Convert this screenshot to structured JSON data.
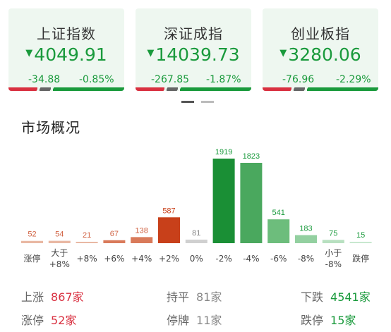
{
  "indices": [
    {
      "name": "上证指数",
      "price": "4049.91",
      "change": "-34.88",
      "pct": "-0.85%"
    },
    {
      "name": "深证成指",
      "price": "14039.73",
      "change": "-267.85",
      "pct": "-1.87%"
    },
    {
      "name": "创业板指",
      "price": "3280.06",
      "change": "-76.96",
      "pct": "-2.29%"
    }
  ],
  "down_marker": "▼",
  "section_title": "市场概况",
  "chart_data": {
    "type": "bar",
    "categories": [
      "涨停",
      "大于\n+8%",
      "+8%",
      "+6%",
      "+4%",
      "+2%",
      "0%",
      "-2%",
      "-4%",
      "-6%",
      "-8%",
      "小于\n-8%",
      "跌停"
    ],
    "values": [
      52,
      54,
      21,
      67,
      138,
      587,
      81,
      1919,
      1823,
      541,
      183,
      75,
      15
    ],
    "colors": [
      "#e9b8a3",
      "#e9b8a3",
      "#e9b8a3",
      "#d97a5a",
      "#d97a5a",
      "#c8401a",
      "#d0d0d0",
      "#1a8f35",
      "#4aa85e",
      "#6dbd7c",
      "#93d0a0",
      "#b8e0c0",
      "#c8e8cf"
    ],
    "label_colors": [
      "#d06040",
      "#d06040",
      "#d06040",
      "#d06040",
      "#d06040",
      "#c8401a",
      "#888888",
      "#1a9a3c",
      "#1a9a3c",
      "#1a9a3c",
      "#1a9a3c",
      "#1a9a3c",
      "#1a9a3c"
    ]
  },
  "stats": {
    "up_label": "上涨",
    "up_value": "867家",
    "flat_label": "持平",
    "flat_value": "81家",
    "down_label": "下跌",
    "down_value": "4541家",
    "limit_up_label": "涨停",
    "limit_up_value": "52家",
    "halt_label": "停牌",
    "halt_value": "11家",
    "limit_down_label": "跌停",
    "limit_down_value": "15家"
  }
}
